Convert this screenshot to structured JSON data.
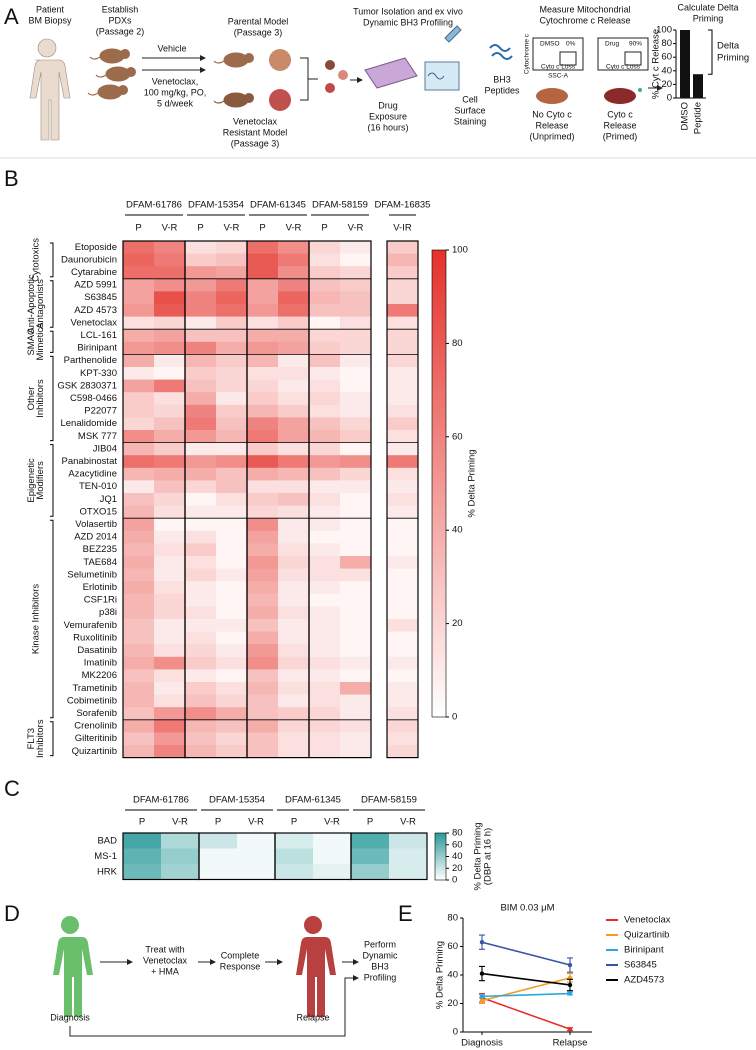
{
  "diagram_a": {
    "panel": "A",
    "patient": [
      "Patient",
      "BM Biopsy"
    ],
    "pdx": [
      "Establish",
      "PDXs",
      "(Passage 2)"
    ],
    "vehicle": "Vehicle",
    "treatment": [
      "Venetoclax,",
      "100 mg/kg, PO,",
      "5 d/week"
    ],
    "parental": [
      "Parental Model",
      "(Passage 3)"
    ],
    "resistant": [
      "Venetoclax",
      "Resistant Model",
      "(Passage 3)"
    ],
    "isolation": [
      "Tumor Isolation and ex vivo",
      "Dynamic BH3 Profiling"
    ],
    "drug_exposure": [
      "Drug",
      "Exposure",
      "(16 hours)"
    ],
    "staining": [
      "Cell",
      "Surface",
      "Staining"
    ],
    "peptides": [
      "BH3",
      "Peptides"
    ],
    "measure": [
      "Measure Mitochondrial",
      "Cytochrome c Release"
    ],
    "flow_axis_y": "Cytochrome c",
    "flow_axis_x": "SSC-A",
    "flow_boxes": [
      {
        "condition": "DMSO",
        "percent": "0%",
        "gate": "Cyto c Loss"
      },
      {
        "condition": "Drug",
        "percent": "90%",
        "gate": "Cyto c Loss"
      }
    ],
    "unprimed": [
      "No Cyto c",
      "Release",
      "(Unprimed)"
    ],
    "primed": [
      "Cyto c",
      "Release",
      "(Primed)"
    ],
    "calculate": [
      "Calculate Delta",
      "Priming"
    ]
  },
  "diagram_d": {
    "panel": "D",
    "diagnosis": "Diagnosis",
    "treat": [
      "Treat with",
      "Venetoclax",
      "+ HMA"
    ],
    "response": [
      "Complete",
      "Response"
    ],
    "relapse": "Relapse",
    "profile": [
      "Perform",
      "Dynamic",
      "BH3",
      "Profiling"
    ]
  },
  "chart_data": [
    {
      "type": "bar",
      "ylabel": "% Cyt c Release",
      "categories": [
        "DMSO",
        "Peptide"
      ],
      "values": [
        100,
        35
      ],
      "color": "#111111",
      "ylim": [
        0,
        100
      ],
      "yticks": [
        0,
        20,
        40,
        60,
        80,
        100
      ],
      "annotation": [
        "Delta",
        "Priming"
      ]
    },
    {
      "type": "heatmap",
      "panel": "B",
      "columns": [
        {
          "name": "DFAM-61786",
          "conditions": [
            "P",
            "V-R"
          ]
        },
        {
          "name": "DFAM-15354",
          "conditions": [
            "P",
            "V-R"
          ]
        },
        {
          "name": "DFAM-61345",
          "conditions": [
            "P",
            "V-R"
          ]
        },
        {
          "name": "DFAM-58159",
          "conditions": [
            "P",
            "V-R"
          ]
        },
        {
          "name": "DFAM-16835",
          "conditions": [
            "V-IR"
          ],
          "color": "#a0226e"
        }
      ],
      "row_groups": [
        {
          "name": [
            "Cytotoxics"
          ],
          "rows": [
            "Etoposide",
            "Daunorubicin",
            "Cytarabine"
          ],
          "values": [
            [
              70,
              60,
              15,
              20,
              70,
              55,
              20,
              10,
              25
            ],
            [
              75,
              65,
              25,
              30,
              80,
              65,
              15,
              5,
              35
            ],
            [
              70,
              70,
              50,
              45,
              80,
              55,
              25,
              20,
              25
            ]
          ]
        },
        {
          "name": [
            "Anti-Apoptotic",
            "Antagonists"
          ],
          "rows": [
            "AZD 5991",
            "S63845",
            "AZD 4573",
            "Venetoclax"
          ],
          "values": [
            [
              45,
              55,
              50,
              65,
              45,
              60,
              30,
              25,
              20
            ],
            [
              45,
              85,
              60,
              75,
              45,
              75,
              35,
              30,
              20
            ],
            [
              50,
              80,
              60,
              70,
              50,
              70,
              30,
              30,
              65
            ],
            [
              15,
              20,
              10,
              25,
              15,
              25,
              5,
              15,
              15
            ]
          ]
        },
        {
          "name": [
            "SMAC",
            "Mimetics"
          ],
          "rows": [
            "LCL-161",
            "Birinipant"
          ],
          "values": [
            [
              40,
              45,
              30,
              30,
              40,
              40,
              20,
              20,
              20
            ],
            [
              50,
              55,
              60,
              40,
              50,
              45,
              25,
              20,
              20
            ]
          ]
        },
        {
          "name": [
            "Other",
            "Inhibitors"
          ],
          "rows": [
            "Parthenolide",
            "KPT-330",
            "GSK 2830371",
            "C598-0466",
            "P22077",
            "Lenalidomide",
            "MSK 777"
          ],
          "values": [
            [
              40,
              10,
              35,
              25,
              35,
              10,
              30,
              10,
              20
            ],
            [
              10,
              5,
              25,
              20,
              15,
              15,
              10,
              5,
              10
            ],
            [
              45,
              65,
              30,
              20,
              20,
              10,
              15,
              5,
              10
            ],
            [
              25,
              15,
              40,
              10,
              25,
              15,
              20,
              10,
              10
            ],
            [
              25,
              20,
              60,
              25,
              35,
              25,
              15,
              10,
              15
            ],
            [
              20,
              30,
              65,
              30,
              60,
              45,
              30,
              20,
              25
            ],
            [
              55,
              40,
              50,
              35,
              65,
              45,
              35,
              25,
              15
            ]
          ]
        },
        {
          "name": [
            "Epigenetic",
            "Modifiers"
          ],
          "rows": [
            "JIB04",
            "Panabinostat",
            "Azacytidine",
            "TEN-010",
            "JQ1",
            "OTXO15"
          ],
          "values": [
            [
              35,
              25,
              10,
              10,
              25,
              15,
              20,
              5,
              10
            ],
            [
              70,
              65,
              50,
              55,
              80,
              65,
              50,
              55,
              65
            ],
            [
              35,
              40,
              40,
              30,
              40,
              35,
              30,
              20,
              15
            ],
            [
              10,
              30,
              20,
              30,
              15,
              15,
              10,
              10,
              10
            ],
            [
              30,
              20,
              5,
              15,
              25,
              30,
              15,
              5,
              15
            ],
            [
              35,
              15,
              10,
              10,
              20,
              15,
              10,
              5,
              10
            ]
          ]
        },
        {
          "name": [
            "Kinase Inhibitors"
          ],
          "rows": [
            "Volasertib",
            "AZD 2014",
            "BEZ235",
            "TAE684",
            "Selumetinib",
            "Erlotinib",
            "CSF1Ri",
            "p38i",
            "Vemurafenib",
            "Ruxolitinib",
            "Dasatinib",
            "Imatinib",
            "MK2206",
            "Trametinib",
            "Cobimetinib",
            "Sorafenib"
          ],
          "values": [
            [
              45,
              5,
              5,
              5,
              55,
              10,
              10,
              5,
              5
            ],
            [
              40,
              10,
              15,
              5,
              45,
              10,
              5,
              5,
              5
            ],
            [
              35,
              15,
              25,
              5,
              40,
              15,
              10,
              5,
              5
            ],
            [
              40,
              10,
              15,
              5,
              50,
              20,
              15,
              40,
              10
            ],
            [
              35,
              10,
              20,
              10,
              45,
              15,
              15,
              15,
              5
            ],
            [
              40,
              15,
              10,
              5,
              40,
              10,
              10,
              5,
              5
            ],
            [
              35,
              20,
              10,
              5,
              35,
              10,
              5,
              5,
              5
            ],
            [
              35,
              20,
              15,
              5,
              40,
              15,
              10,
              5,
              5
            ],
            [
              30,
              10,
              10,
              10,
              30,
              10,
              10,
              5,
              15
            ],
            [
              30,
              10,
              15,
              5,
              40,
              10,
              10,
              5,
              5
            ],
            [
              35,
              15,
              20,
              10,
              50,
              15,
              10,
              5,
              5
            ],
            [
              40,
              55,
              25,
              15,
              55,
              20,
              15,
              10,
              10
            ],
            [
              30,
              15,
              10,
              5,
              30,
              10,
              10,
              5,
              5
            ],
            [
              35,
              10,
              25,
              15,
              35,
              15,
              15,
              40,
              10
            ],
            [
              35,
              15,
              30,
              20,
              30,
              10,
              15,
              10,
              10
            ],
            [
              30,
              50,
              55,
              40,
              30,
              25,
              20,
              10,
              15
            ]
          ]
        },
        {
          "name": [
            "FLT3",
            "Inhibitors"
          ],
          "rows": [
            "Crenolinib",
            "Gilteritinib",
            "Quizartinib"
          ],
          "values": [
            [
              40,
              65,
              35,
              30,
              40,
              20,
              20,
              15,
              20
            ],
            [
              30,
              50,
              30,
              20,
              30,
              15,
              15,
              10,
              15
            ],
            [
              35,
              60,
              35,
              25,
              30,
              15,
              15,
              10,
              20
            ]
          ]
        }
      ],
      "colors": [
        "#ffffff",
        "#e5312a"
      ],
      "zlim": [
        0,
        100
      ],
      "zticks": [
        0,
        20,
        40,
        60,
        80,
        100
      ],
      "colorbar_label": [
        "% Delta Priming"
      ]
    },
    {
      "type": "heatmap",
      "panel": "C",
      "columns": [
        {
          "name": "DFAM-61786",
          "conditions": [
            "P",
            "V-R"
          ]
        },
        {
          "name": "DFAM-15354",
          "conditions": [
            "P",
            "V-R"
          ]
        },
        {
          "name": "DFAM-61345",
          "conditions": [
            "P",
            "V-R"
          ]
        },
        {
          "name": "DFAM-58159",
          "conditions": [
            "P",
            "V-R"
          ]
        }
      ],
      "rows": [
        "BAD",
        "MS-1",
        "HRK"
      ],
      "values": [
        [
          70,
          30,
          20,
          5,
          15,
          5,
          65,
          20
        ],
        [
          60,
          40,
          5,
          5,
          25,
          5,
          55,
          15
        ],
        [
          55,
          35,
          5,
          5,
          20,
          10,
          40,
          15
        ]
      ],
      "colors": [
        "#ffffff",
        "#2a9a9a"
      ],
      "zlim": [
        0,
        80
      ],
      "zticks": [
        0,
        20,
        40,
        60,
        80
      ],
      "colorbar_label": [
        "% Delta Priming",
        "(DBP at 16 h)"
      ]
    },
    {
      "type": "line",
      "panel": "E",
      "title": "BIM 0.03 μM",
      "ylabel": "% Delta Priming",
      "categories": [
        "Diagnosis",
        "Relapse"
      ],
      "series": [
        {
          "name": "Venetoclax",
          "color": "#e8302a",
          "values": [
            24,
            2
          ],
          "errors": [
            3,
            1
          ]
        },
        {
          "name": "Quizartinib",
          "color": "#f39c1e",
          "values": [
            22,
            38
          ],
          "errors": [
            2,
            3
          ]
        },
        {
          "name": "Birinipant",
          "color": "#29a8e0",
          "values": [
            25,
            27
          ],
          "errors": [
            1,
            1
          ]
        },
        {
          "name": "S63845",
          "color": "#3a54a4",
          "values": [
            63,
            47
          ],
          "errors": [
            5,
            5
          ]
        },
        {
          "name": "AZD4573",
          "color": "#000000",
          "values": [
            41,
            33
          ],
          "errors": [
            5,
            4
          ]
        }
      ],
      "ylim": [
        0,
        80
      ],
      "yticks": [
        0,
        20,
        40,
        60,
        80
      ]
    }
  ]
}
